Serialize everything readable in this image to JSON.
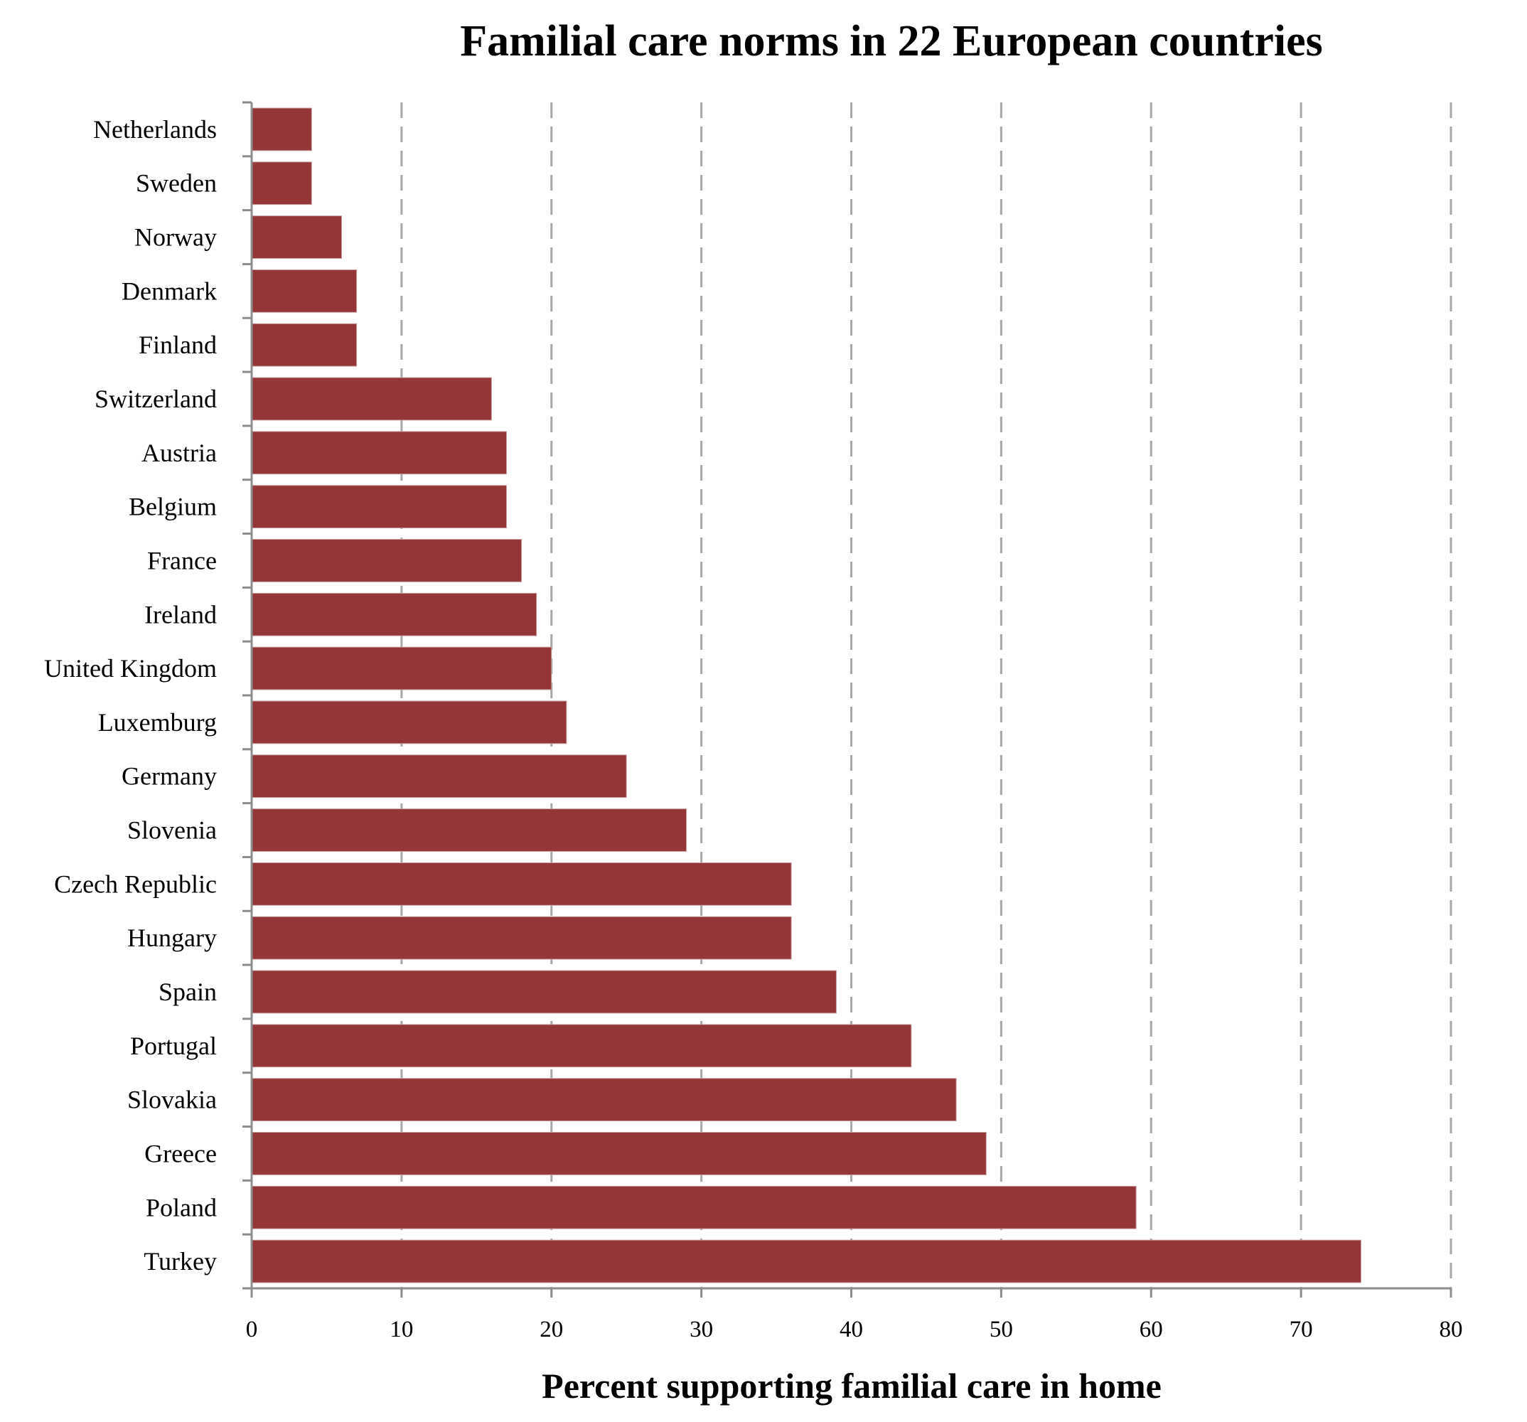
{
  "chart_data": {
    "type": "bar",
    "orientation": "horizontal",
    "title": "Familial care norms in 22 European countries",
    "xlabel": "Percent supporting familial care in home",
    "ylabel": "",
    "xlim": [
      0,
      80
    ],
    "xticks": [
      0,
      10,
      20,
      30,
      40,
      50,
      60,
      70,
      80
    ],
    "grid": "vertical-dashed",
    "legend": "none",
    "bar_color": "#943637",
    "categories": [
      "Netherlands",
      "Sweden",
      "Norway",
      "Denmark",
      "Finland",
      "Switzerland",
      "Austria",
      "Belgium",
      "France",
      "Ireland",
      "United Kingdom",
      "Luxemburg",
      "Germany",
      "Slovenia",
      "Czech Republic",
      "Hungary",
      "Spain",
      "Portugal",
      "Slovakia",
      "Greece",
      "Poland",
      "Turkey"
    ],
    "values": [
      4,
      4,
      6,
      7,
      7,
      16,
      17,
      17,
      18,
      19,
      20,
      21,
      25,
      29,
      36,
      36,
      39,
      44,
      47,
      49,
      59,
      74
    ]
  }
}
